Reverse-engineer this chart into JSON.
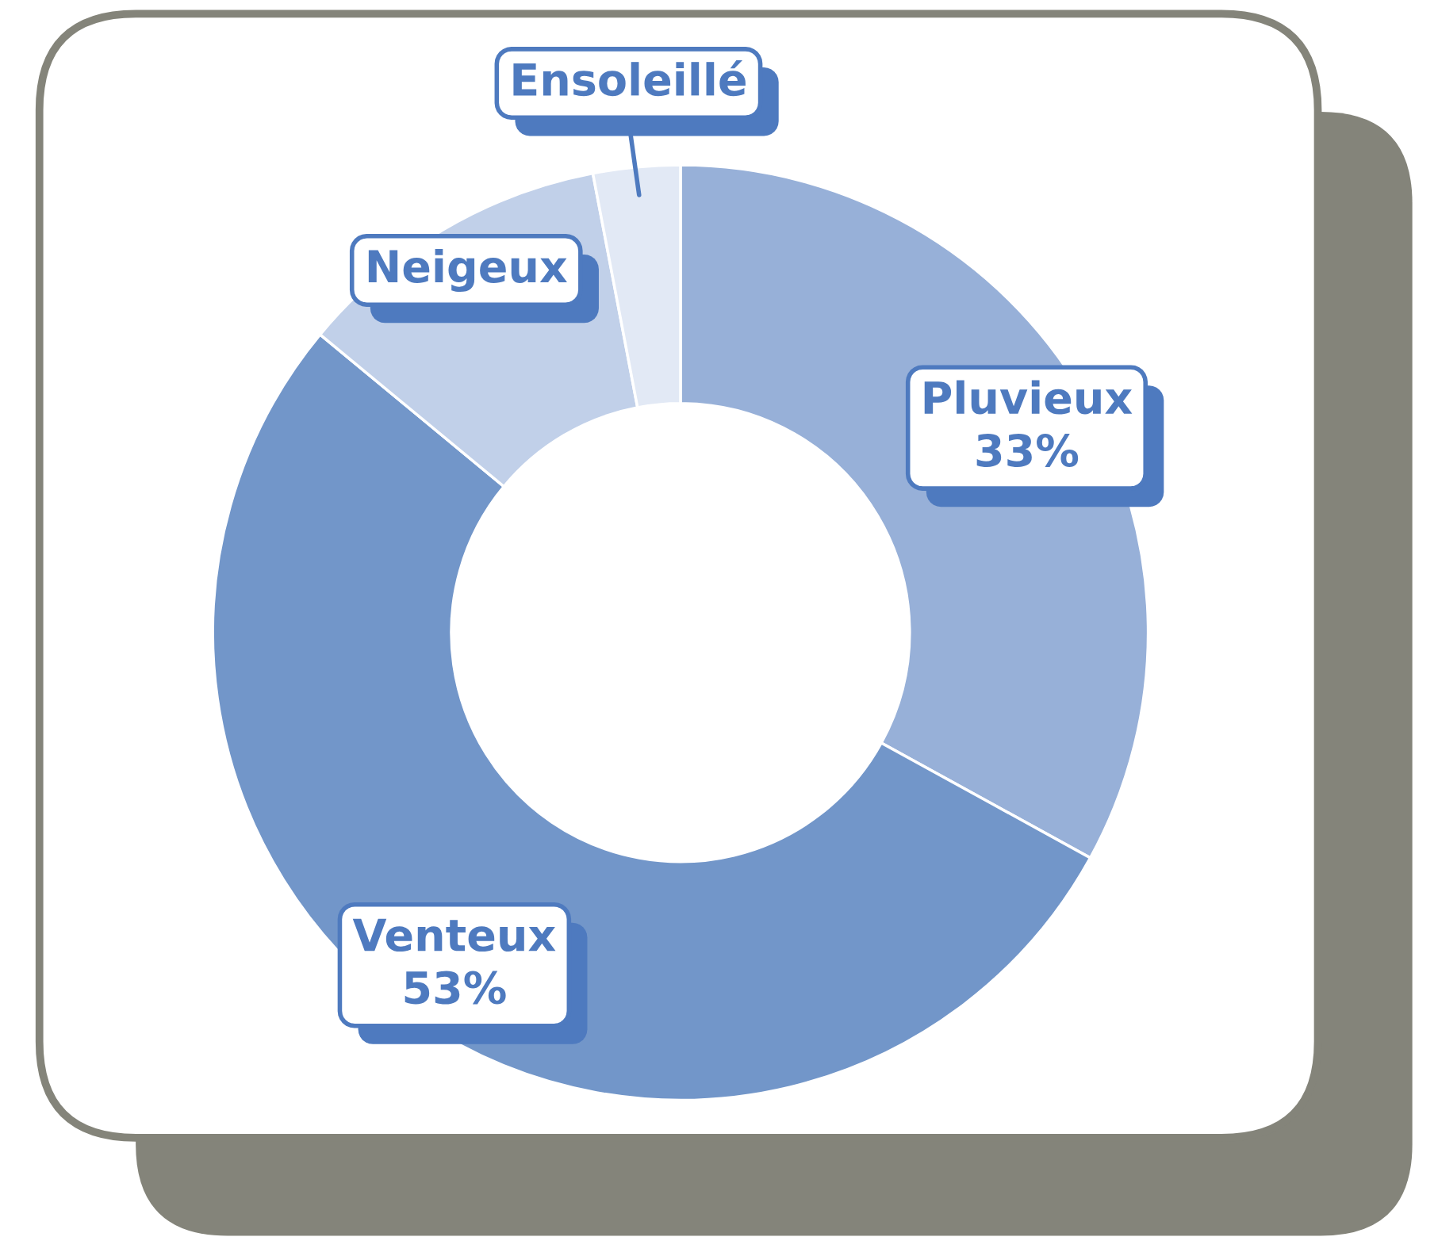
{
  "chart_data": {
    "type": "donut",
    "categories": [
      "Pluvieux",
      "Venteux",
      "Neigeux",
      "Ensoleillé"
    ],
    "values": [
      33,
      53,
      11,
      3
    ],
    "colors": [
      "#97b0d8",
      "#7296c9",
      "#c1d0e9",
      "#e2e9f5"
    ],
    "value_labels": [
      "33%",
      "53%",
      null,
      null
    ]
  }
}
